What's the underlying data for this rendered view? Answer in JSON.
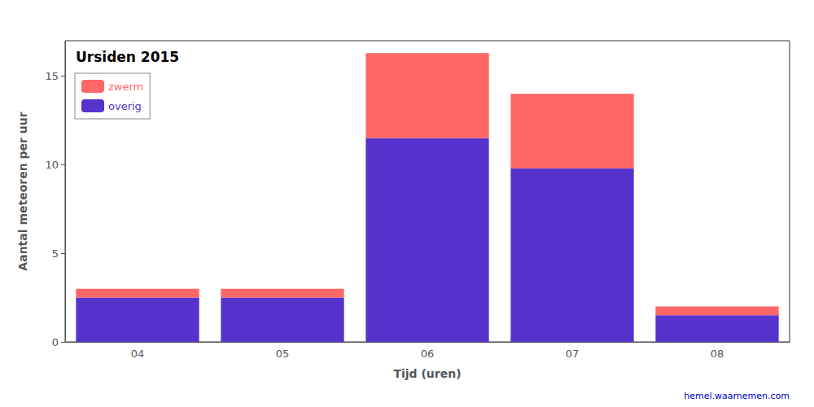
{
  "chart_data": {
    "type": "bar",
    "stacked": true,
    "title": "Ursiden 2015",
    "xlabel": "Tijd (uren)",
    "ylabel": "Aantal meteoren per uur",
    "categories": [
      "04",
      "05",
      "06",
      "07",
      "08"
    ],
    "series": [
      {
        "name": "overig",
        "color": "#5533CC",
        "values": [
          2.5,
          2.5,
          11.5,
          9.8,
          1.5
        ]
      },
      {
        "name": "zwerm",
        "color": "#FF6666",
        "values": [
          0.5,
          0.5,
          4.8,
          4.2,
          0.5
        ]
      }
    ],
    "ylim": [
      0,
      17
    ],
    "yticks": [
      0,
      5,
      10,
      15
    ],
    "grid": false,
    "legend": "upper left",
    "annotations": [
      {
        "text": "hemel.waarnemen.com",
        "color": "#0000CC"
      }
    ]
  }
}
